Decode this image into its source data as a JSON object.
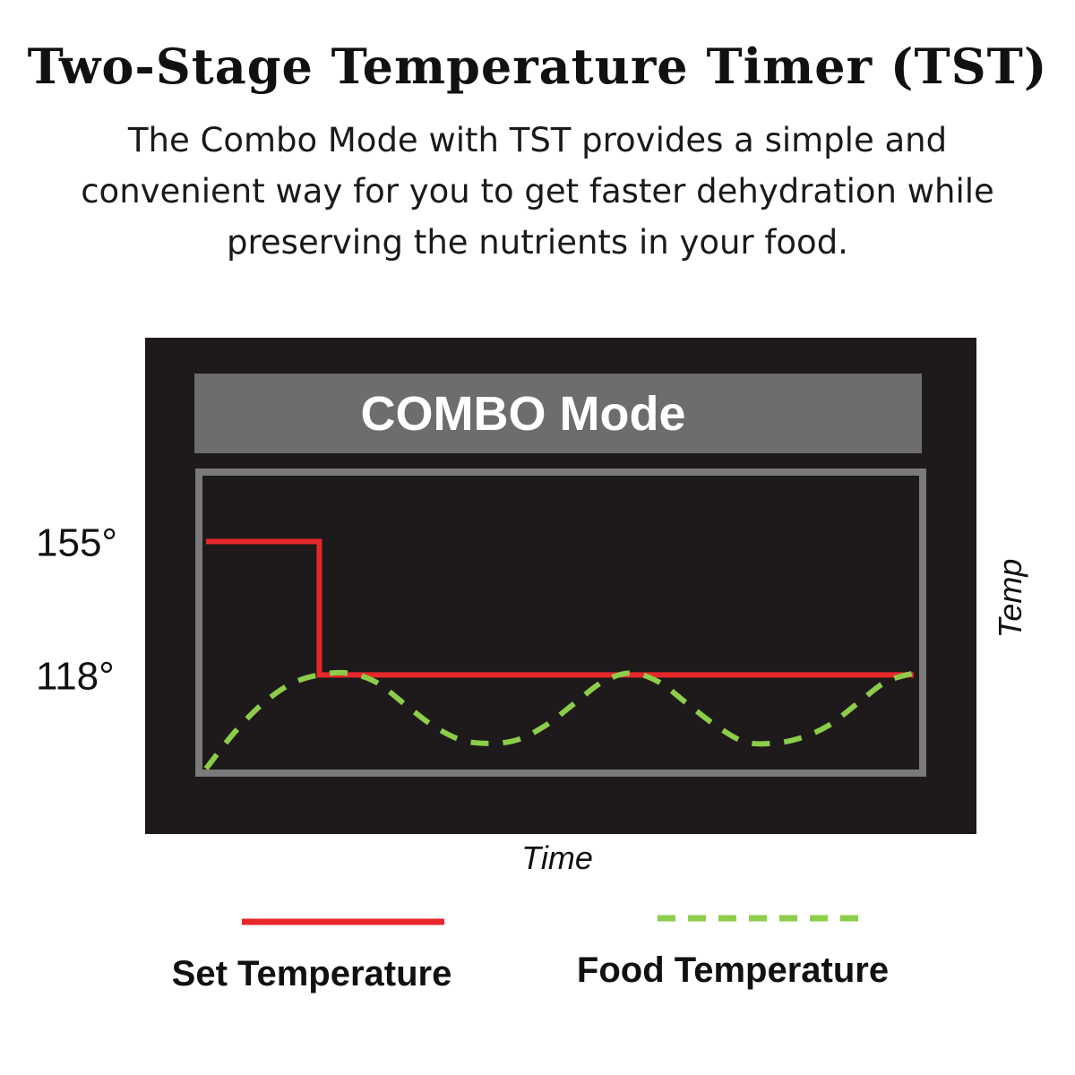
{
  "header": {
    "title": "Two-Stage Temperature Timer (TST)",
    "subtitle_lines": [
      "The Combo Mode with TST provides a simple and",
      "convenient way for you to get faster dehydration while",
      "preserving the nutrients in your food."
    ]
  },
  "colors": {
    "background": "#ffffff",
    "panel": "#1e1a1b",
    "header_bar": "#6d6d6f",
    "plot_border": "#7a7a7a",
    "set_temperature": "#e8272b",
    "food_temperature": "#8ccd4a"
  },
  "chart_data": {
    "type": "line",
    "title": "COMBO Mode",
    "xlabel": "Time",
    "ylabel": "Temp",
    "y_ticks": [
      {
        "value": 155,
        "label": "155°"
      },
      {
        "value": 118,
        "label": "118°"
      }
    ],
    "xlim": [
      0,
      100
    ],
    "ylim": [
      92,
      173
    ],
    "grid": false,
    "legend_position": "bottom",
    "series": [
      {
        "name": "Set Temperature",
        "style": "solid",
        "color": "#e8272b",
        "points": [
          [
            0,
            155
          ],
          [
            16,
            155
          ],
          [
            16,
            118
          ],
          [
            100,
            118
          ]
        ]
      },
      {
        "name": "Food Temperature",
        "style": "dashed",
        "color": "#8ccd4a",
        "points": [
          [
            0,
            92
          ],
          [
            4,
            102
          ],
          [
            8,
            110
          ],
          [
            12,
            115.5
          ],
          [
            16,
            118
          ],
          [
            20,
            118.5
          ],
          [
            24,
            116
          ],
          [
            28,
            110
          ],
          [
            32,
            104
          ],
          [
            36,
            100
          ],
          [
            40,
            99
          ],
          [
            44,
            100
          ],
          [
            48,
            104
          ],
          [
            52,
            110
          ],
          [
            56,
            116
          ],
          [
            60,
            118.5
          ],
          [
            64,
            116
          ],
          [
            68,
            110
          ],
          [
            72,
            104
          ],
          [
            76,
            99.5
          ],
          [
            80,
            99
          ],
          [
            84,
            100.5
          ],
          [
            88,
            104
          ],
          [
            92,
            110
          ],
          [
            96,
            116
          ],
          [
            100,
            118.5
          ]
        ]
      }
    ]
  }
}
